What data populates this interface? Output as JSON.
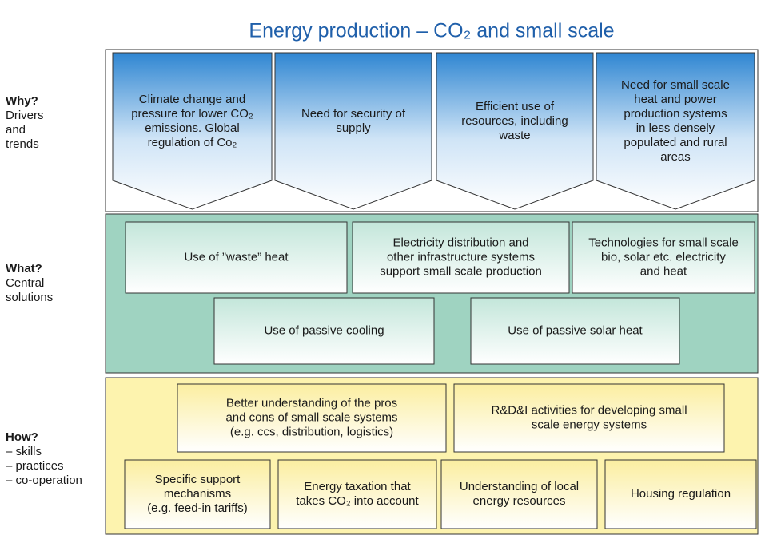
{
  "title": "Energy production – CO₂ and small scale",
  "rows": [
    {
      "heading": "Why?",
      "subheading": [
        "Drivers",
        "and",
        "trends"
      ],
      "items": [
        {
          "lines": [
            "Climate change and",
            "pressure for lower CO₂",
            "emissions. Global",
            "regulation of Co₂"
          ]
        },
        {
          "lines": [
            "Need for security of",
            "supply"
          ]
        },
        {
          "lines": [
            "Efficient use of",
            "resources, including",
            "waste"
          ]
        },
        {
          "lines": [
            "Need for small scale",
            "heat and power",
            "production systems",
            "in less densely",
            "populated and rural",
            "areas"
          ]
        }
      ]
    },
    {
      "heading": "What?",
      "subheading": [
        "Central",
        "solutions"
      ],
      "items": [
        {
          "lines": [
            "Use of ”waste” heat"
          ]
        },
        {
          "lines": [
            "Electricity  distribution and",
            "other infrastructure systems",
            "support small scale production"
          ]
        },
        {
          "lines": [
            "Technologies for small scale",
            "bio, solar etc. electricity",
            "and heat"
          ]
        },
        {
          "lines": [
            "Use of passive cooling"
          ]
        },
        {
          "lines": [
            "Use of passive solar heat"
          ]
        }
      ]
    },
    {
      "heading": "How?",
      "subheading": [
        "– skills",
        "– practices",
        "– co-operation"
      ],
      "items": [
        {
          "lines": [
            "Better understanding of the pros",
            "and cons of small scale systems",
            "(e.g. ccs, distribution, logistics)"
          ]
        },
        {
          "lines": [
            "R&D&I activities for developing small",
            "scale energy systems"
          ]
        },
        {
          "lines": [
            "Specific support",
            "mechanisms",
            "(e.g. feed-in tariffs)"
          ]
        },
        {
          "lines": [
            "Energy taxation that",
            "takes CO₂ into account"
          ]
        },
        {
          "lines": [
            "Understanding of local",
            "energy resources"
          ]
        },
        {
          "lines": [
            "Housing regulation"
          ]
        }
      ]
    }
  ]
}
